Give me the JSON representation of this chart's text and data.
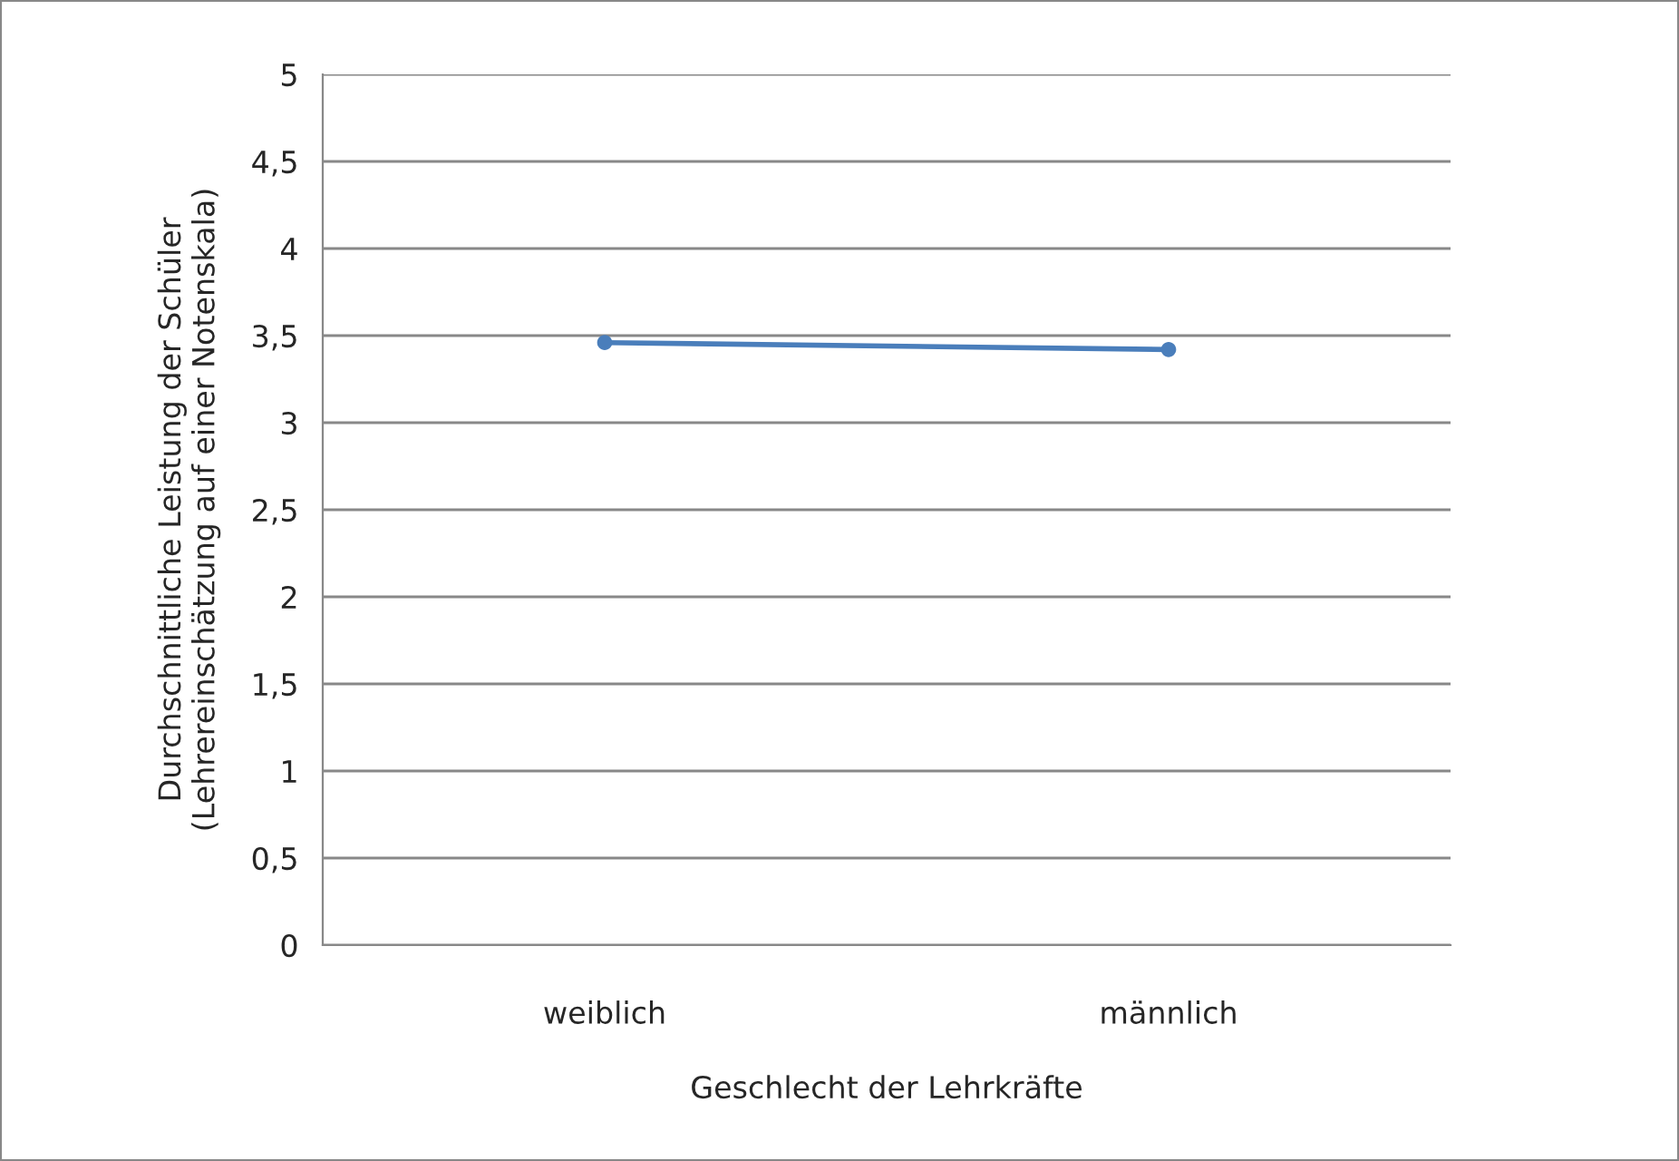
{
  "chart_data": {
    "type": "line",
    "xlabel": "Geschlecht der Lehrkräfte",
    "ylabel": "Durchschnittliche Leistung der Schüler\n(Lehrereinschätzung auf einer Notenskala)",
    "categories": [
      "weiblich",
      "männlich"
    ],
    "series": [
      {
        "color": "#4a7ebb",
        "values": [
          3.46,
          3.42
        ]
      }
    ],
    "ylim": [
      0,
      5
    ],
    "yticks": [
      0,
      {
        "value": 0.5,
        "label": "0,5"
      },
      1,
      {
        "value": 1.5,
        "label": "1,5"
      },
      2,
      {
        "value": 2.5,
        "label": "2,5"
      },
      3,
      {
        "value": 3.5,
        "label": "3,5"
      },
      4,
      {
        "value": 4.5,
        "label": "4,5"
      },
      5
    ],
    "grid": "y",
    "legend": false,
    "marker": "circle",
    "line_style": "solid"
  }
}
